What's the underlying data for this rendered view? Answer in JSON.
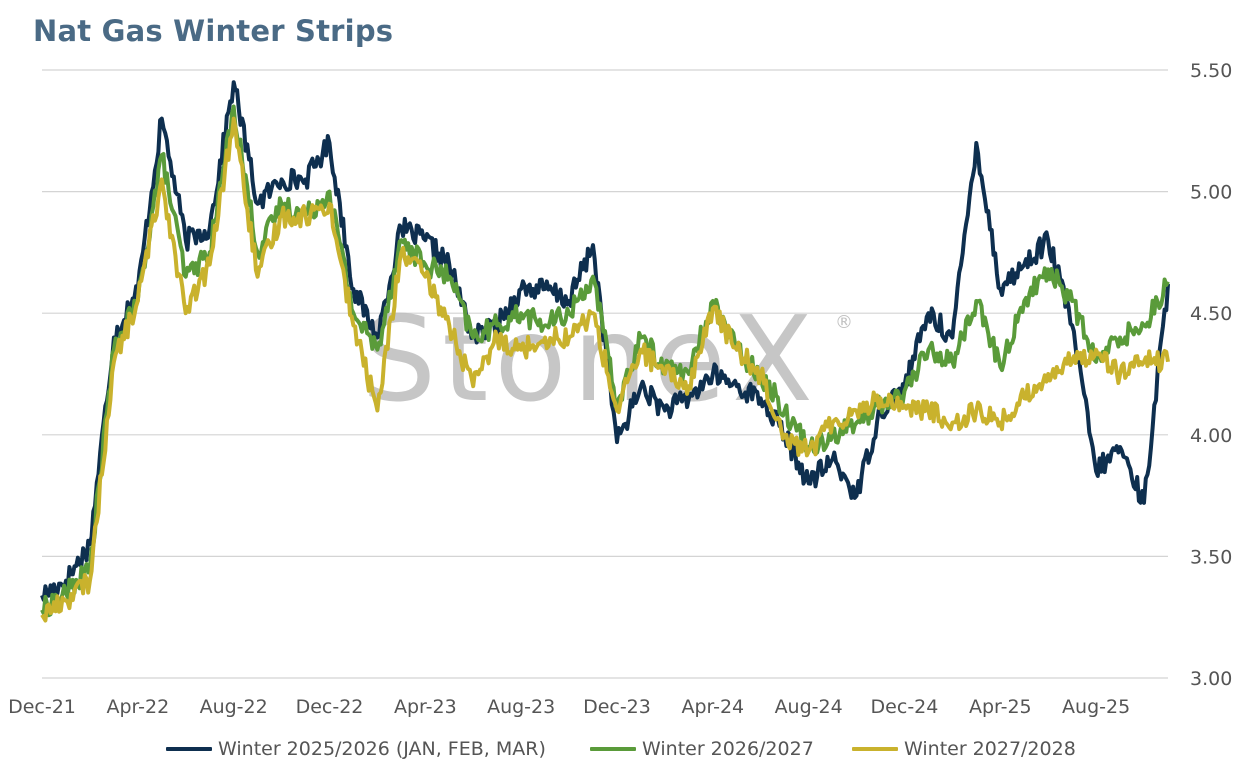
{
  "title": "Nat Gas Winter Strips",
  "watermark": "StoneX",
  "watermark_mark": "®",
  "colors": {
    "w2526": "#0e2f4f",
    "w2627": "#5a9b3a",
    "w2728": "#c9b22d",
    "grid": "#d4d4d4",
    "title": "#4a6a85",
    "watermark": "#c0c0c0"
  },
  "legend_position": "bottom",
  "chart_data": {
    "type": "line",
    "title": "Nat Gas Winter Strips",
    "xlabel": "",
    "ylabel": "",
    "x_ticks": [
      "Dec-21",
      "Apr-22",
      "Aug-22",
      "Dec-22",
      "Apr-23",
      "Aug-23",
      "Dec-23",
      "Apr-24",
      "Aug-24",
      "Dec-24",
      "Apr-25",
      "Aug-25"
    ],
    "y_ticks": [
      "5.50",
      "5.00",
      "4.50",
      "4.00",
      "3.50",
      "3.00"
    ],
    "ylim": [
      3.0,
      5.5
    ],
    "y_axis_side": "right",
    "grid": true,
    "x": [
      "Dec-21",
      "Jan-22",
      "Feb-22",
      "Mar-22",
      "Apr-22",
      "May-22",
      "Jun-22",
      "Jul-22",
      "Aug-22",
      "Sep-22",
      "Oct-22",
      "Nov-22",
      "Dec-22",
      "Jan-23",
      "Feb-23",
      "Mar-23",
      "Apr-23",
      "May-23",
      "Jun-23",
      "Jul-23",
      "Aug-23",
      "Sep-23",
      "Oct-23",
      "Nov-23",
      "Dec-23",
      "Jan-24",
      "Feb-24",
      "Mar-24",
      "Apr-24",
      "May-24",
      "Jun-24",
      "Jul-24",
      "Aug-24",
      "Sep-24",
      "Oct-24",
      "Nov-24",
      "Dec-24",
      "Jan-25",
      "Feb-25",
      "Mar-25",
      "Apr-25",
      "May-25",
      "Jun-25",
      "Jul-25",
      "Aug-25",
      "Sep-25",
      "Oct-25",
      "Nov-25"
    ],
    "series": [
      {
        "name": "Winter 2025/2026 (JAN, FEB, MAR)",
        "color": "#0e2f4f",
        "values": [
          3.34,
          3.4,
          3.55,
          4.4,
          4.6,
          5.3,
          4.8,
          4.85,
          5.45,
          4.95,
          5.05,
          5.05,
          5.2,
          4.6,
          4.4,
          4.85,
          4.8,
          4.7,
          4.4,
          4.45,
          4.6,
          4.6,
          4.55,
          4.78,
          3.97,
          4.2,
          4.1,
          4.15,
          4.25,
          4.2,
          4.15,
          4.0,
          3.8,
          3.9,
          3.75,
          4.1,
          4.2,
          4.5,
          4.4,
          5.2,
          4.6,
          4.7,
          4.8,
          4.45,
          3.85,
          3.95,
          3.72,
          4.62
        ]
      },
      {
        "name": "Winter 2026/2027",
        "color": "#5a9b3a",
        "values": [
          3.28,
          3.35,
          3.45,
          4.35,
          4.55,
          5.15,
          4.65,
          4.75,
          5.35,
          4.75,
          4.95,
          4.9,
          5.0,
          4.5,
          4.35,
          4.8,
          4.7,
          4.65,
          4.4,
          4.45,
          4.5,
          4.45,
          4.5,
          4.65,
          4.12,
          4.4,
          4.28,
          4.25,
          4.55,
          4.35,
          4.25,
          4.1,
          3.95,
          4.0,
          4.05,
          4.12,
          4.18,
          4.35,
          4.3,
          4.55,
          4.28,
          4.55,
          4.68,
          4.55,
          4.3,
          4.4,
          4.45,
          4.63
        ]
      },
      {
        "name": "Winter 2027/2028",
        "color": "#c9b22d",
        "values": [
          3.26,
          3.32,
          3.4,
          4.3,
          4.55,
          5.05,
          4.5,
          4.7,
          5.3,
          4.65,
          4.9,
          4.9,
          4.95,
          4.45,
          4.1,
          4.75,
          4.65,
          4.45,
          4.2,
          4.4,
          4.35,
          4.4,
          4.4,
          4.5,
          4.1,
          4.35,
          4.25,
          4.2,
          4.52,
          4.35,
          4.25,
          4.0,
          3.93,
          4.05,
          4.1,
          4.15,
          4.12,
          4.1,
          4.05,
          4.1,
          4.05,
          4.15,
          4.25,
          4.3,
          4.35,
          4.25,
          4.3,
          4.3
        ]
      }
    ]
  }
}
